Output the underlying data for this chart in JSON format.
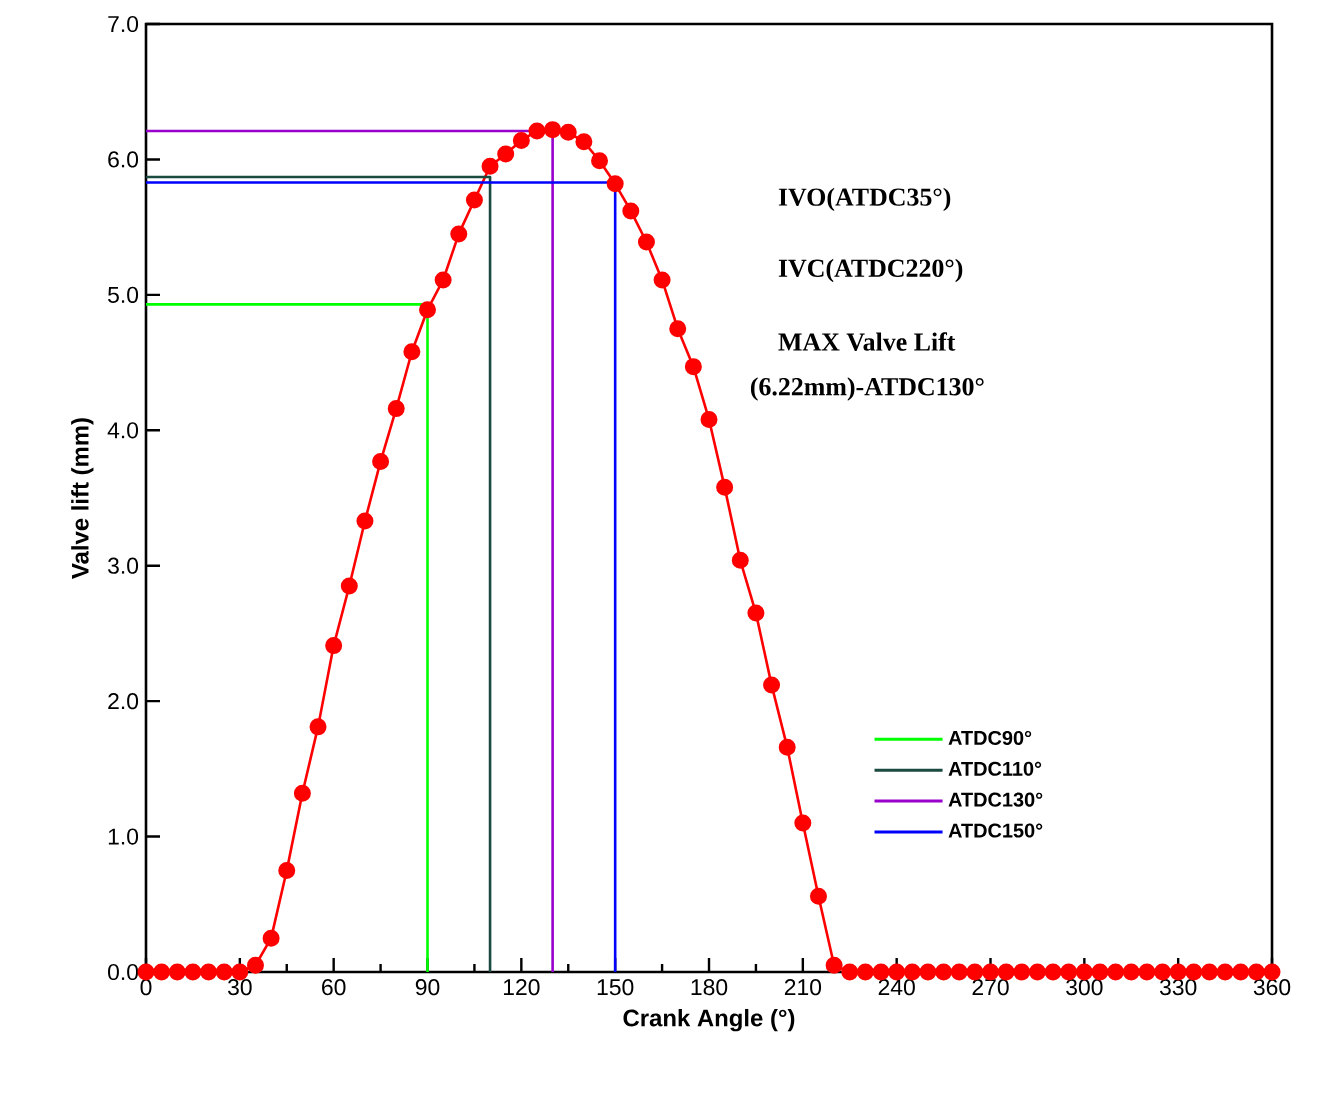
{
  "chart_data": {
    "type": "line",
    "xlabel": "Crank Angle (°)",
    "ylabel": "Valve lift (mm)",
    "xlim": [
      0,
      360
    ],
    "xticks": [
      0,
      30,
      60,
      90,
      120,
      150,
      180,
      210,
      240,
      270,
      300,
      330,
      360
    ],
    "ylim": [
      0,
      7
    ],
    "yticks": [
      {
        "value": 0,
        "label": "0.0"
      },
      {
        "value": 1,
        "label": "1.0"
      },
      {
        "value": 2,
        "label": "2.0"
      },
      {
        "value": 3,
        "label": "3.0"
      },
      {
        "value": 4,
        "label": "4.0"
      },
      {
        "value": 5,
        "label": "5.0"
      },
      {
        "value": 6,
        "label": "6.0"
      },
      {
        "value": 7,
        "label": "7.0"
      }
    ],
    "legend": "bottom right",
    "annotations": [
      "IVO(ATDC35°)",
      "IVC(ATDC220°)",
      "MAX Valve Lift",
      "(6.22mm)-ATDC130°"
    ],
    "series": [
      {
        "color": "#ff0000",
        "marker": "circle",
        "x": [
          0,
          5,
          10,
          15,
          20,
          25,
          30,
          35,
          40,
          45,
          50,
          55,
          60,
          65,
          70,
          75,
          80,
          85,
          90,
          95,
          100,
          105,
          110,
          115,
          120,
          125,
          130,
          135,
          140,
          145,
          150,
          155,
          160,
          165,
          170,
          175,
          180,
          185,
          190,
          195,
          200,
          205,
          210,
          215,
          220,
          225,
          230,
          235,
          240,
          245,
          250,
          255,
          260,
          265,
          270,
          275,
          280,
          285,
          290,
          295,
          300,
          305,
          310,
          315,
          320,
          325,
          330,
          335,
          340,
          345,
          350,
          355,
          360
        ],
        "values": [
          0,
          0,
          0,
          0,
          0,
          0,
          0,
          0.05,
          0.25,
          0.75,
          1.32,
          1.81,
          2.41,
          2.85,
          3.33,
          3.77,
          4.16,
          4.58,
          4.89,
          5.11,
          5.45,
          5.7,
          5.95,
          6.04,
          6.14,
          6.21,
          6.22,
          6.2,
          6.13,
          5.99,
          5.82,
          5.62,
          5.39,
          5.11,
          4.75,
          4.47,
          4.08,
          3.58,
          3.04,
          2.65,
          2.12,
          1.66,
          1.1,
          0.56,
          0.05,
          0,
          0,
          0,
          0,
          0,
          0,
          0,
          0,
          0,
          0,
          0,
          0,
          0,
          0,
          0,
          0,
          0,
          0,
          0,
          0,
          0,
          0,
          0,
          0,
          0,
          0,
          0,
          0
        ]
      },
      {
        "name": "ATDC90°",
        "color": "#00ff00",
        "x": [
          0,
          90,
          90
        ],
        "values": [
          4.93,
          4.93,
          0
        ]
      },
      {
        "name": "ATDC110°",
        "color": "#1a4a40",
        "x": [
          0,
          110,
          110
        ],
        "values": [
          5.87,
          5.87,
          0
        ]
      },
      {
        "name": "ATDC130°",
        "color": "#9900cc",
        "x": [
          0,
          130,
          130
        ],
        "values": [
          6.21,
          6.21,
          0
        ]
      },
      {
        "name": "ATDC150°",
        "color": "#0000ff",
        "x": [
          0,
          150,
          150
        ],
        "values": [
          5.83,
          5.83,
          0
        ]
      }
    ]
  }
}
